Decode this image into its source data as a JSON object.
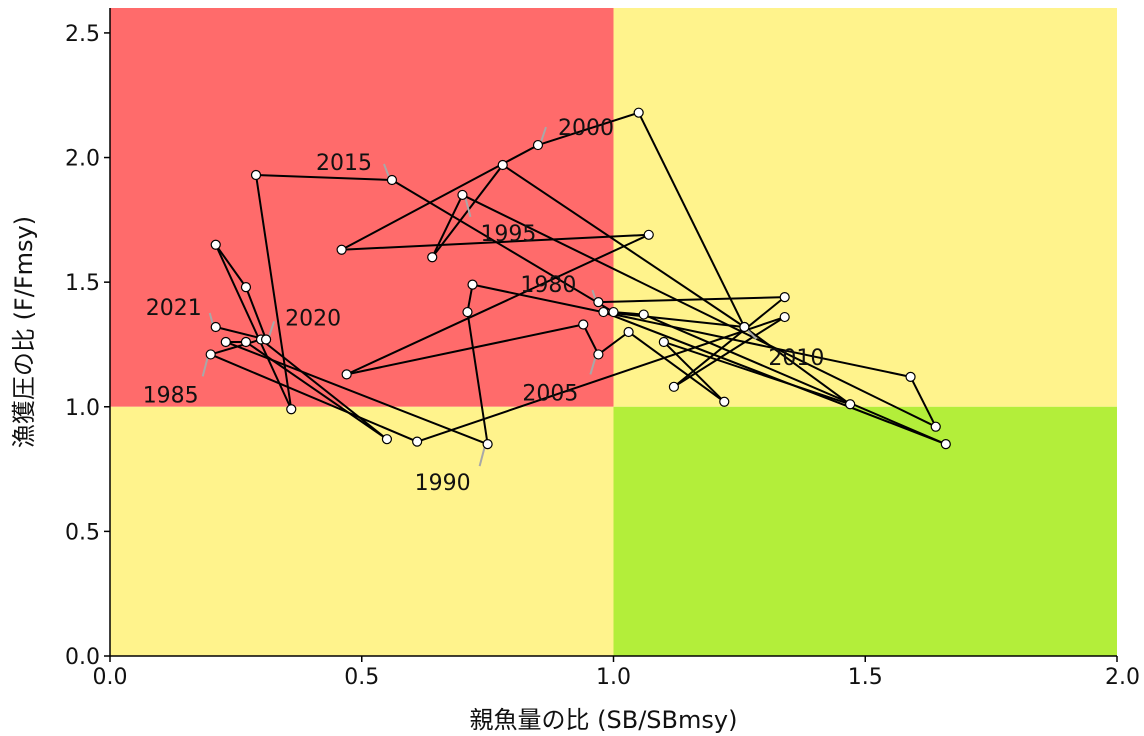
{
  "chart_data": {
    "type": "scatter",
    "xlabel": "親魚量の比 (SB/SBmsy)",
    "ylabel": "漁獲圧の比 (F/Fmsy)",
    "xlim": [
      0,
      2.0
    ],
    "ylim": [
      0,
      2.6
    ],
    "x_ticks": [
      "0.0",
      "0.5",
      "1.0",
      "1.5",
      "2.0"
    ],
    "y_ticks": [
      "0.0",
      "0.5",
      "1.0",
      "1.5",
      "2.0",
      "2.5"
    ],
    "x_tick_values": [
      0,
      0.5,
      1.0,
      1.5,
      2.0
    ],
    "y_tick_values": [
      0,
      0.5,
      1.0,
      1.5,
      2.0,
      2.5
    ],
    "grid": false,
    "background_zones": [
      {
        "zone": "overfished-overfishing",
        "x": [
          0,
          1
        ],
        "y": [
          1,
          2.6
        ],
        "color": "#ff6b6b"
      },
      {
        "zone": "healthy-overfishing",
        "x": [
          1,
          2
        ],
        "y": [
          1,
          2.6
        ],
        "color": "#fff38c"
      },
      {
        "zone": "overfished-low-pressure",
        "x": [
          0,
          1
        ],
        "y": [
          0,
          1
        ],
        "color": "#fff38c"
      },
      {
        "zone": "healthy",
        "x": [
          1,
          2
        ],
        "y": [
          0,
          1
        ],
        "color": "#b3ee3a"
      }
    ],
    "series": [
      {
        "years": [
          1980,
          1981,
          1982,
          1983,
          1984,
          1985,
          1986,
          1987,
          1988,
          1989,
          1990,
          1991,
          1992,
          1993,
          1994,
          1995,
          1996,
          1997,
          1998,
          1999,
          2000,
          2001,
          2002,
          2003,
          2004,
          2005,
          2006,
          2007,
          2008,
          2009,
          2010,
          2011,
          2012,
          2013,
          2014,
          2015,
          2016,
          2017,
          2018,
          2019,
          2020,
          2021
        ],
        "x": [
          0.97,
          1.34,
          1.12,
          1.34,
          0.61,
          0.2,
          0.3,
          0.55,
          0.27,
          0.23,
          0.75,
          0.71,
          0.72,
          1.59,
          1.64,
          0.7,
          0.64,
          0.78,
          1.26,
          1.05,
          0.85,
          0.46,
          1.07,
          0.47,
          0.94,
          0.97,
          1.03,
          1.22,
          1.1,
          1.47,
          1.26,
          0.98,
          1.66,
          1.06,
          1.0,
          0.56,
          0.29,
          0.36,
          0.21,
          0.27,
          0.31,
          0.21
        ],
        "y": [
          1.42,
          1.44,
          1.08,
          1.36,
          0.86,
          1.21,
          1.27,
          0.87,
          1.26,
          1.26,
          0.85,
          1.38,
          1.49,
          1.12,
          0.92,
          1.85,
          1.6,
          1.97,
          1.32,
          2.18,
          2.05,
          1.63,
          1.69,
          1.13,
          1.33,
          1.21,
          1.3,
          1.02,
          1.26,
          1.01,
          1.32,
          1.38,
          0.85,
          1.37,
          1.38,
          1.91,
          1.93,
          0.99,
          1.65,
          1.48,
          1.27,
          1.32
        ]
      }
    ],
    "annotations": [
      {
        "text": "1980",
        "year": 1980
      },
      {
        "text": "1985",
        "year": 1985
      },
      {
        "text": "1990",
        "year": 1990
      },
      {
        "text": "1995",
        "year": 1995
      },
      {
        "text": "2000",
        "year": 2000
      },
      {
        "text": "2005",
        "year": 2005
      },
      {
        "text": "2010",
        "year": 2010
      },
      {
        "text": "2015",
        "year": 2015
      },
      {
        "text": "2020",
        "year": 2020
      },
      {
        "text": "2021",
        "year": 2021
      }
    ]
  }
}
